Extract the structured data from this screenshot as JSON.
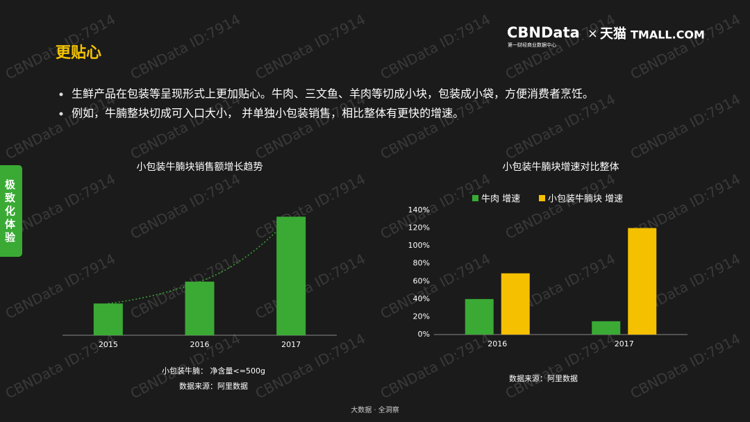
{
  "header": {
    "title": "更贴心",
    "logo": "CBNData",
    "logo_sub": "第一财经商业数据中心",
    "times": "×",
    "partner": "天猫",
    "partner_en": "TMALL.COM"
  },
  "side_tab": "极致化体验",
  "bullets": [
    "生鲜产品在包装等呈现形式上更加贴心。牛肉、三文鱼、羊肉等切成小块，包装成小袋，方便消费者烹饪。",
    "例如，牛腩整块切成可入口大小， 并单独小包装销售，相比整体有更快的增速。"
  ],
  "watermark": "CBNData ID:7914",
  "footer": "大数据 · 全洞察",
  "chart_data": [
    {
      "type": "bar",
      "title": "小包装牛腩块销售额增长趋势",
      "categories": [
        "2015",
        "2016",
        "2017"
      ],
      "values": [
        45,
        76,
        168
      ],
      "color": "#3aaa35",
      "ylim": [
        0,
        180
      ],
      "trendline": true,
      "notes": [
        "小包装牛腩：  净含量<=500g",
        "数据来源：阿里数据"
      ]
    },
    {
      "type": "bar",
      "title": "小包装牛腩块增速对比整体",
      "categories": [
        "2016",
        "2017"
      ],
      "series": [
        {
          "name": "牛肉 增速",
          "color": "#3aaa35",
          "values": [
            40,
            15
          ]
        },
        {
          "name": "小包装牛腩块 增速",
          "color": "#f5c000",
          "values": [
            69,
            120
          ]
        }
      ],
      "ylim": [
        0,
        140
      ],
      "yticks": [
        {
          "value": 0,
          "label": "0%"
        },
        {
          "value": 20,
          "label": "20%"
        },
        {
          "value": 40,
          "label": "40%"
        },
        {
          "value": 60,
          "label": "60%"
        },
        {
          "value": 80,
          "label": "80%"
        },
        {
          "value": 100,
          "label": "100%"
        },
        {
          "value": 120,
          "label": "120%"
        },
        {
          "value": 140,
          "label": "140%"
        }
      ],
      "legend": "top",
      "notes": [
        "数据来源：阿里数据"
      ]
    }
  ]
}
